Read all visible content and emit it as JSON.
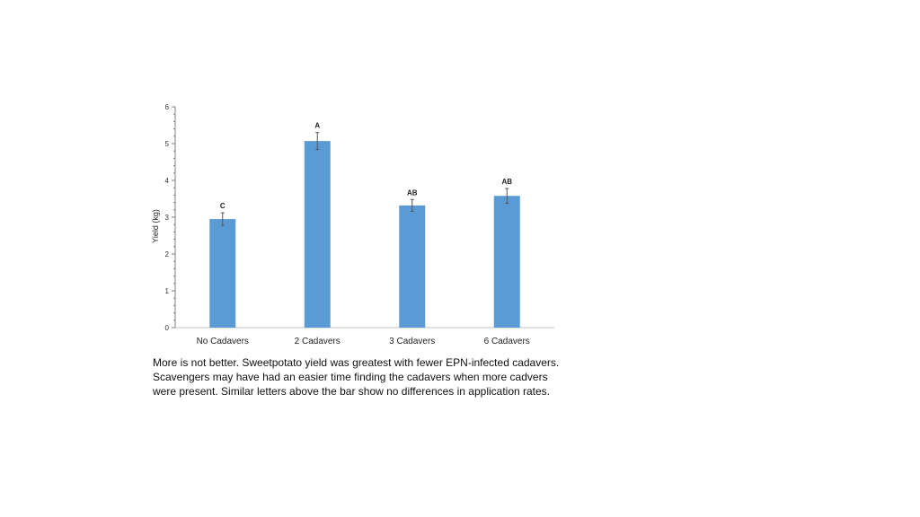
{
  "chart_data": {
    "type": "bar",
    "categories": [
      "No Cadavers",
      "2 Cadavers",
      "3 Cadavers",
      "6 Cadavers"
    ],
    "values": [
      2.95,
      5.07,
      3.32,
      3.58
    ],
    "errors": [
      0.17,
      0.23,
      0.16,
      0.2
    ],
    "significance_letters": [
      "C",
      "A",
      "AB",
      "AB"
    ],
    "title": "",
    "xlabel": "",
    "ylabel": "Yield (kg)",
    "ylim": [
      0,
      6
    ],
    "yticks": [
      "0",
      "1",
      "2",
      "3",
      "4",
      "5",
      "6"
    ],
    "grid": false,
    "legend": "none",
    "bar_color": "#5b9bd5",
    "error_bar_color": "#555555"
  },
  "caption": "More is not better. Sweetpotato yield was greatest with fewer EPN-infected cadavers. Scavengers may have had an easier time finding the cadavers when more cadvers were present. Similar letters above the bar show no differences in application rates."
}
